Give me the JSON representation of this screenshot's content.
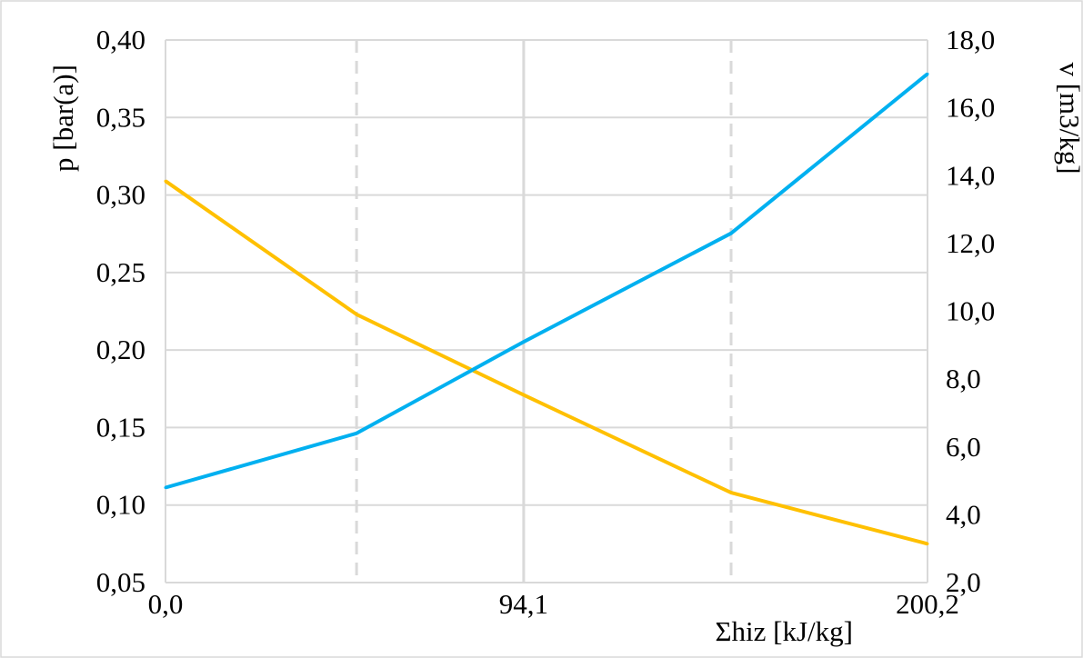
{
  "chart_data": {
    "type": "line",
    "xlabel": "Σhiz [kJ/kg]",
    "ylabel_left": "p [bar(a)]",
    "ylabel_right": "v [m3/kg]",
    "x_tick_labels": [
      "0,0",
      "94,1",
      "200,2"
    ],
    "x_major_gridlines": [
      94.1
    ],
    "x_dashed_gridlines": [
      50.2,
      148.6
    ],
    "xlim": [
      0,
      200.2
    ],
    "ylim_left": [
      0.05,
      0.4
    ],
    "ylim_right": [
      2.0,
      18.0
    ],
    "y_ticks_left": [
      "0,05",
      "0,10",
      "0,15",
      "0,20",
      "0,25",
      "0,30",
      "0,35",
      "0,40"
    ],
    "y_ticks_right": [
      "2,0",
      "4,0",
      "6,0",
      "8,0",
      "10,0",
      "12,0",
      "14,0",
      "16,0",
      "18,0"
    ],
    "grid": true,
    "series": [
      {
        "axis": "left",
        "color": "#FFC000",
        "x": [
          0,
          50.2,
          94.1,
          148.6,
          200.2
        ],
        "y": [
          0.309,
          0.223,
          0.171,
          0.108,
          0.075
        ]
      },
      {
        "axis": "right",
        "color": "#00B0F0",
        "x": [
          0,
          50.2,
          94.1,
          148.6,
          200.2
        ],
        "y": [
          4.8,
          6.4,
          9.1,
          12.3,
          17.0
        ]
      }
    ]
  }
}
